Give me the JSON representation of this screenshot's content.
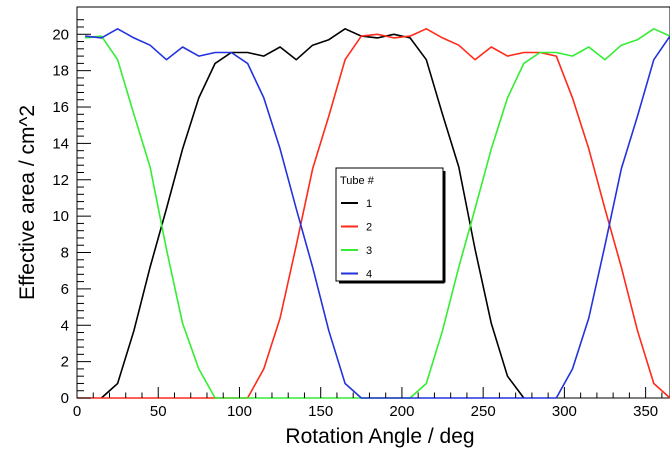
{
  "chart_data": {
    "type": "line",
    "xlabel": "Rotation Angle / deg",
    "ylabel": "Effective area / cm^2",
    "xlim": [
      0,
      365
    ],
    "ylim": [
      0,
      21.5
    ],
    "x_ticks": [
      0,
      50,
      100,
      150,
      200,
      250,
      300,
      350
    ],
    "y_ticks": [
      0,
      2,
      4,
      6,
      8,
      10,
      12,
      14,
      16,
      18,
      20
    ],
    "grid": false,
    "legend": {
      "title": "Tube #",
      "placement": "center-right"
    },
    "series": [
      {
        "name": "1",
        "color": "#000000",
        "x": [
          15,
          25,
          35,
          45,
          55,
          65,
          75,
          85,
          95,
          105,
          115,
          125,
          135,
          145,
          155,
          165,
          175,
          185,
          195,
          205,
          215,
          225,
          235,
          245,
          255,
          265,
          275
        ],
        "y": [
          0,
          0.8,
          3.7,
          7.2,
          10.4,
          13.7,
          16.5,
          18.4,
          19.0,
          19.0,
          18.8,
          19.3,
          18.6,
          19.4,
          19.7,
          20.3,
          19.9,
          19.8,
          20.0,
          19.8,
          18.6,
          15.6,
          12.7,
          8.2,
          4.1,
          1.2,
          0
        ]
      },
      {
        "name": "2",
        "color": "#ff2a1a",
        "x": [
          0,
          105,
          115,
          125,
          135,
          145,
          155,
          165,
          175,
          185,
          195,
          205,
          215,
          225,
          235,
          245,
          255,
          265,
          275,
          285,
          295,
          305,
          315,
          325,
          335,
          345,
          355,
          365
        ],
        "y": [
          0,
          0,
          1.6,
          4.4,
          8.4,
          12.6,
          15.5,
          18.6,
          19.9,
          20.0,
          19.8,
          19.9,
          20.3,
          19.8,
          19.4,
          18.6,
          19.3,
          18.8,
          19.0,
          19.0,
          18.8,
          16.5,
          13.7,
          10.4,
          7.2,
          3.7,
          0.8,
          0
        ]
      },
      {
        "name": "3",
        "color": "#33ee33",
        "x": [
          5,
          15,
          25,
          35,
          45,
          55,
          65,
          75,
          85,
          205,
          215,
          225,
          235,
          245,
          255,
          265,
          275,
          285,
          295,
          305,
          315,
          325,
          335,
          345,
          355,
          365
        ],
        "y": [
          19.8,
          19.9,
          18.6,
          15.6,
          12.7,
          8.2,
          4.1,
          1.6,
          0,
          0,
          0.8,
          3.7,
          7.2,
          10.4,
          13.7,
          16.5,
          18.4,
          19.0,
          19.0,
          18.8,
          19.3,
          18.6,
          19.4,
          19.7,
          20.3,
          19.9
        ]
      },
      {
        "name": "4",
        "color": "#2233dd",
        "x": [
          5,
          15,
          25,
          35,
          45,
          55,
          65,
          75,
          85,
          95,
          105,
          115,
          125,
          135,
          145,
          155,
          165,
          175,
          295,
          305,
          315,
          325,
          335,
          345,
          355,
          365
        ],
        "y": [
          19.9,
          19.8,
          20.3,
          19.8,
          19.4,
          18.6,
          19.3,
          18.8,
          19.0,
          19.0,
          18.4,
          16.5,
          13.7,
          10.4,
          7.2,
          3.7,
          0.8,
          0,
          0,
          1.6,
          4.4,
          8.4,
          12.6,
          15.5,
          18.6,
          19.9
        ]
      }
    ]
  }
}
